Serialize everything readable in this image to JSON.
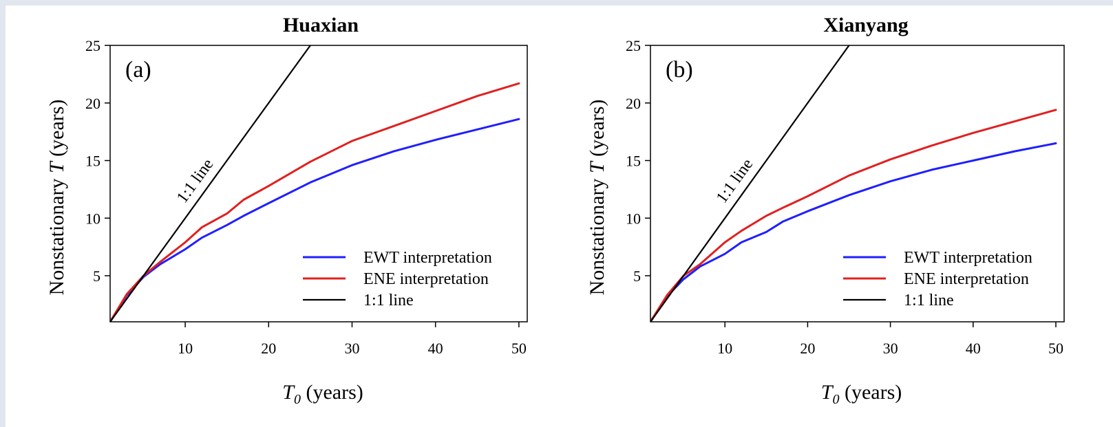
{
  "chart_data": [
    {
      "type": "line",
      "title": "Huaxian",
      "panel_label": "(a)",
      "xlabel_main": "T",
      "xlabel_sub": "0",
      "xlabel_unit": "(years)",
      "ylabel_pre": "Nonstationary",
      "ylabel_sym": "T",
      "ylabel_unit": "(years)",
      "xlim": [
        1,
        51
      ],
      "ylim": [
        1,
        25
      ],
      "xticks": [
        10,
        20,
        30,
        40,
        50
      ],
      "yticks": [
        5,
        10,
        15,
        20,
        25
      ],
      "legend_position": "bottom-right",
      "one_to_one_label": "1:1 line",
      "series": [
        {
          "name": "EWT interpretation",
          "color": "#1f1fff",
          "x": [
            1,
            3,
            5,
            7,
            10,
            12,
            15,
            17,
            20,
            25,
            30,
            35,
            40,
            45,
            50
          ],
          "y": [
            1,
            3.3,
            4.9,
            6.0,
            7.3,
            8.3,
            9.4,
            10.2,
            11.3,
            13.1,
            14.6,
            15.8,
            16.8,
            17.7,
            18.6
          ]
        },
        {
          "name": "ENE interpretation",
          "color": "#e02020",
          "x": [
            1,
            3,
            5,
            7,
            10,
            12,
            15,
            17,
            20,
            25,
            30,
            35,
            40,
            45,
            50
          ],
          "y": [
            1,
            3.4,
            5.0,
            6.2,
            7.9,
            9.2,
            10.4,
            11.6,
            12.8,
            14.9,
            16.7,
            18.0,
            19.3,
            20.6,
            21.7
          ]
        },
        {
          "name": "1:1 line",
          "color": "#000000",
          "x": [
            1,
            25
          ],
          "y": [
            1,
            25
          ]
        }
      ]
    },
    {
      "type": "line",
      "title": "Xianyang",
      "panel_label": "(b)",
      "xlabel_main": "T",
      "xlabel_sub": "0",
      "xlabel_unit": "(years)",
      "ylabel_pre": "Nonstationary",
      "ylabel_sym": "T",
      "ylabel_unit": "(years)",
      "xlim": [
        1,
        51
      ],
      "ylim": [
        1,
        25
      ],
      "xticks": [
        10,
        20,
        30,
        40,
        50
      ],
      "yticks": [
        5,
        10,
        15,
        20,
        25
      ],
      "legend_position": "bottom-right",
      "one_to_one_label": "1:1 line",
      "series": [
        {
          "name": "EWT interpretation",
          "color": "#1f1fff",
          "x": [
            1,
            3,
            5,
            7,
            10,
            12,
            15,
            17,
            20,
            25,
            30,
            35,
            40,
            45,
            50
          ],
          "y": [
            1,
            3.2,
            4.7,
            5.8,
            6.9,
            7.9,
            8.8,
            9.7,
            10.6,
            12.0,
            13.2,
            14.2,
            15.0,
            15.8,
            16.5
          ]
        },
        {
          "name": "ENE interpretation",
          "color": "#e02020",
          "x": [
            1,
            3,
            5,
            7,
            10,
            12,
            15,
            17,
            20,
            25,
            30,
            35,
            40,
            45,
            50
          ],
          "y": [
            1,
            3.3,
            5.0,
            6.0,
            7.9,
            8.9,
            10.2,
            10.9,
            11.9,
            13.7,
            15.1,
            16.3,
            17.4,
            18.4,
            19.4
          ]
        },
        {
          "name": "1:1 line",
          "color": "#000000",
          "x": [
            1,
            25
          ],
          "y": [
            1,
            25
          ]
        }
      ]
    }
  ]
}
